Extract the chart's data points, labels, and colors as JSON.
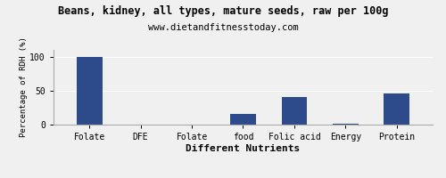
{
  "title": "Beans, kidney, all types, mature seeds, raw per 100g",
  "subtitle": "www.dietandfitnesstoday.com",
  "xlabel": "Different Nutrients",
  "ylabel": "Percentage of RDH (%)",
  "categories": [
    "Folate",
    "DFE",
    "Folate",
    "food",
    "Folic acid",
    "Energy",
    "Protein"
  ],
  "values": [
    100,
    0.5,
    0.5,
    16,
    41,
    1.5,
    46
  ],
  "bar_color": "#2d4a8a",
  "ylim": [
    0,
    110
  ],
  "yticks": [
    0,
    50,
    100
  ],
  "background_color": "#f0f0f0",
  "plot_bg_color": "#f0f0f0",
  "title_fontsize": 8.5,
  "subtitle_fontsize": 7.5,
  "xlabel_fontsize": 8,
  "ylabel_fontsize": 6.5,
  "tick_fontsize": 7
}
